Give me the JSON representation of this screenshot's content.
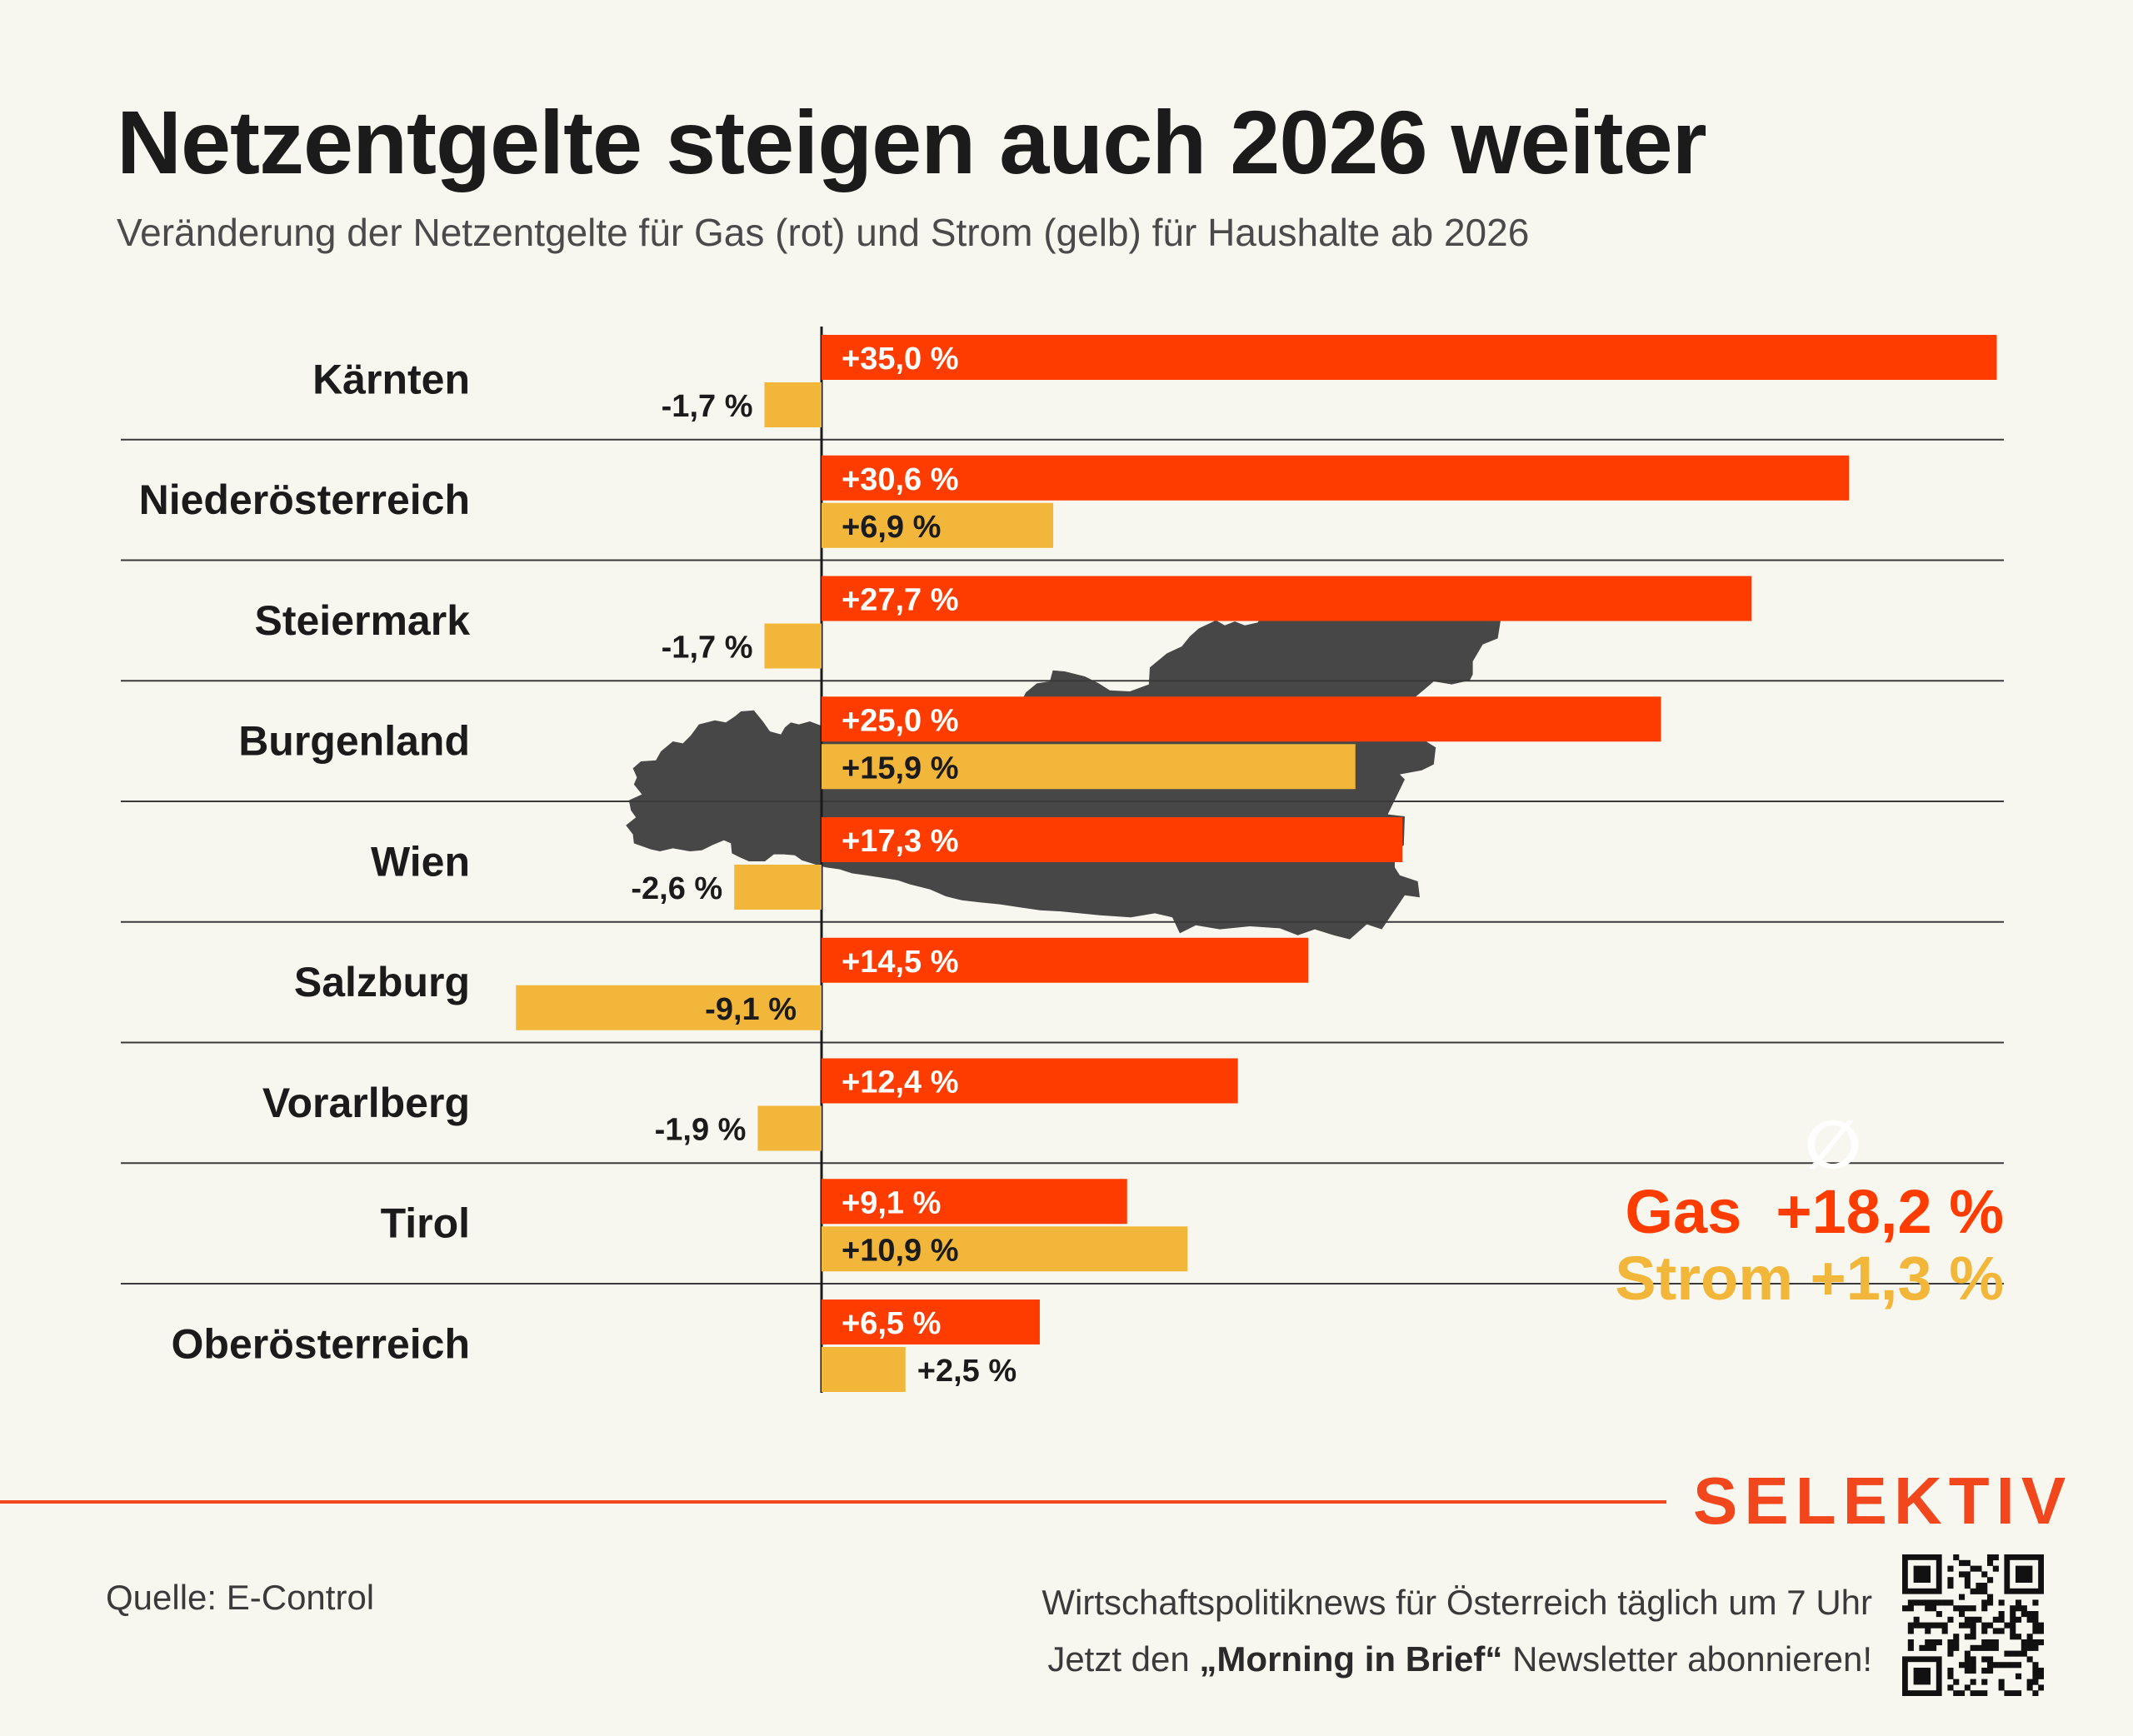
{
  "header": {
    "title": "Netzentgelte steigen auch 2026 weiter",
    "subtitle": "Veränderung der Netzentgelte für Gas (rot) und Strom (gelb) für Haushalte ab 2026"
  },
  "colors": {
    "gas": "#ff3c00",
    "strom": "#f2b73a",
    "map": "#474747",
    "brand": "#f2461d",
    "divider": "#3a3a3a"
  },
  "chart_data": {
    "type": "bar",
    "orientation": "horizontal",
    "xlim": [
      -10.5,
      36
    ],
    "categories": [
      "Kärnten",
      "Niederösterreich",
      "Steiermark",
      "Burgenland",
      "Wien",
      "Salzburg",
      "Vorarlberg",
      "Tirol",
      "Oberösterreich"
    ],
    "series": [
      {
        "color": "#ff3c00",
        "values": [
          35.0,
          30.6,
          27.7,
          25.0,
          17.3,
          14.5,
          12.4,
          9.1,
          6.5
        ],
        "labels": [
          "+35,0 %",
          "+30,6 %",
          "+27,7 %",
          "+25,0 %",
          "+17,3 %",
          "+14,5 %",
          "+12,4 %",
          "+9,1 %",
          "+6,5 %"
        ]
      },
      {
        "color": "#f2b73a",
        "values": [
          -1.7,
          6.9,
          -1.7,
          15.9,
          -2.6,
          -9.1,
          -1.9,
          10.9,
          2.5
        ],
        "labels": [
          "-1,7 %",
          "+6,9 %",
          "-1,7 %",
          "+15,9 %",
          "-2,6 %",
          "-9,1 %",
          "-1,9 %",
          "+10,9 %",
          "+2,5 %"
        ]
      }
    ],
    "average": {
      "symbol": "∅",
      "gas_label": "Gas  +18,2 %",
      "strom_label": "Strom +1,3 %"
    }
  },
  "footer": {
    "brand": "SELEKTIV",
    "source": "Quelle: E-Control",
    "promo_line1": "Wirtschaftspolitiknews für Österreich täglich um 7 Uhr",
    "promo_line2_pre": "Jetzt den ",
    "promo_line2_bold": "„Morning in Brief“",
    "promo_line2_post": " Newsletter abonnieren!",
    "qr_icon": "qr-code-icon"
  }
}
